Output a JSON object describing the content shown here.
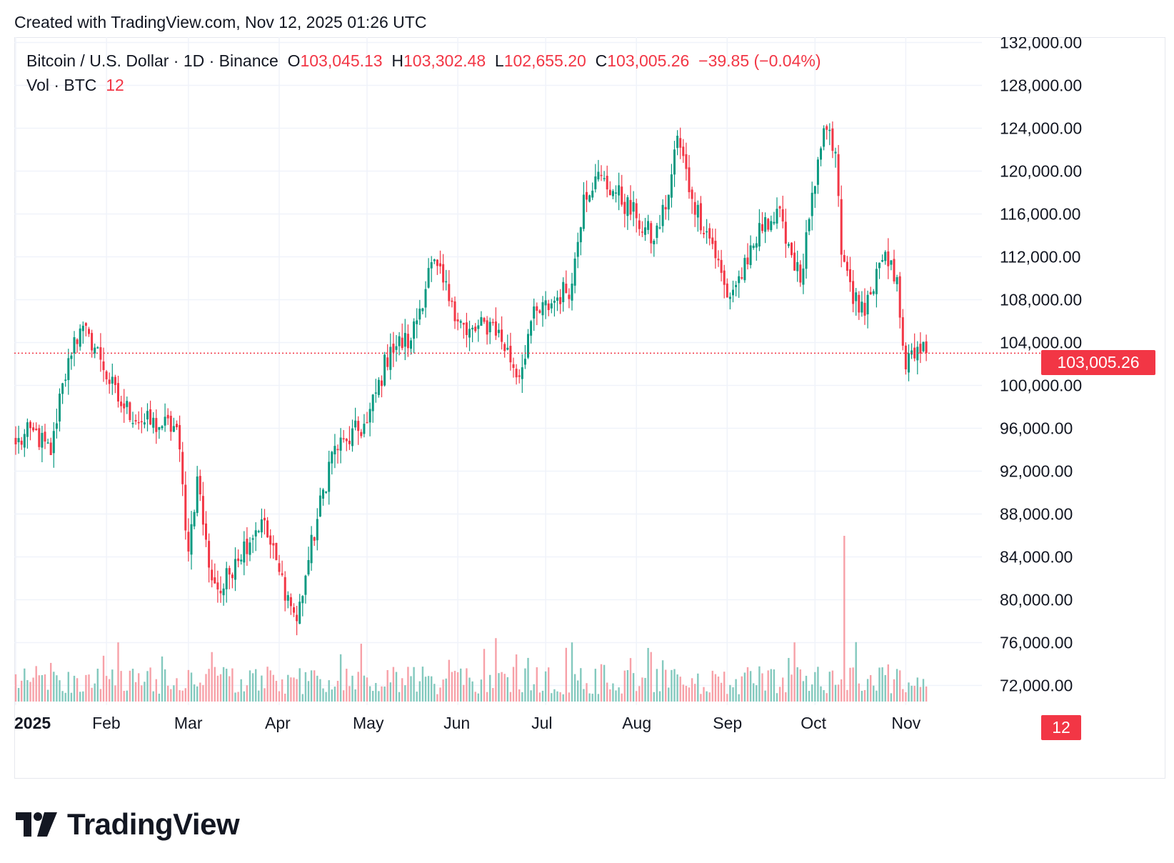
{
  "header": {
    "created_text": "Created with TradingView.com, Nov 12, 2025 01:26 UTC"
  },
  "legend": {
    "symbol": "Bitcoin / U.S. Dollar · 1D · Binance",
    "open_label": "O",
    "open_value": "103,045.13",
    "high_label": "H",
    "high_value": "103,302.48",
    "low_label": "L",
    "low_value": "102,655.20",
    "close_label": "C",
    "close_value": "103,005.26",
    "change": "−39.85 (−0.04%)",
    "volume_label": "Vol · BTC",
    "volume_value": "12"
  },
  "price_tag": "103,005.26",
  "volume_tag": "12",
  "brand": {
    "name": "TradingView",
    "icon": "tradingview-logo-icon"
  },
  "colors": {
    "up": "#089981",
    "down": "#f23645",
    "up_vol": "#83c9be",
    "down_vol": "#f7a1a8",
    "grid": "#f0f3fa"
  },
  "chart_data": {
    "type": "candlestick",
    "y_ticks": [
      "72,000.00",
      "76,000.00",
      "80,000.00",
      "84,000.00",
      "88,000.00",
      "92,000.00",
      "96,000.00",
      "100,000.00",
      "104,000.00",
      "108,000.00",
      "112,000.00",
      "116,000.00",
      "120,000.00",
      "124,000.00",
      "128,000.00",
      "132,000.00"
    ],
    "y_tick_values": [
      72000,
      76000,
      80000,
      84000,
      88000,
      92000,
      96000,
      100000,
      104000,
      108000,
      112000,
      116000,
      120000,
      124000,
      128000,
      132000
    ],
    "ylim": [
      70500,
      132500
    ],
    "x_tick_labels": [
      "2025",
      "Feb",
      "Mar",
      "Apr",
      "May",
      "Jun",
      "Jul",
      "Aug",
      "Sep",
      "Oct",
      "Nov"
    ],
    "x_tick_days": [
      0,
      31,
      59,
      90,
      120,
      151,
      181,
      212,
      243,
      273,
      304
    ],
    "last_price": 103005.26,
    "daily_close_anchors": [
      {
        "day": 0,
        "close": 94500
      },
      {
        "day": 6,
        "close": 95800
      },
      {
        "day": 12,
        "close": 93500
      },
      {
        "day": 16,
        "close": 100200
      },
      {
        "day": 20,
        "close": 104500
      },
      {
        "day": 25,
        "close": 104800
      },
      {
        "day": 29,
        "close": 102400
      },
      {
        "day": 35,
        "close": 98500
      },
      {
        "day": 43,
        "close": 96600
      },
      {
        "day": 50,
        "close": 96200
      },
      {
        "day": 55,
        "close": 96100
      },
      {
        "day": 59,
        "close": 84500
      },
      {
        "day": 62,
        "close": 91500
      },
      {
        "day": 66,
        "close": 83000
      },
      {
        "day": 70,
        "close": 80600
      },
      {
        "day": 75,
        "close": 83800
      },
      {
        "day": 84,
        "close": 87500
      },
      {
        "day": 90,
        "close": 82600
      },
      {
        "day": 96,
        "close": 78000
      },
      {
        "day": 100,
        "close": 83700
      },
      {
        "day": 108,
        "close": 93800
      },
      {
        "day": 113,
        "close": 94800
      },
      {
        "day": 120,
        "close": 96500
      },
      {
        "day": 128,
        "close": 103600
      },
      {
        "day": 135,
        "close": 104200
      },
      {
        "day": 142,
        "close": 111500
      },
      {
        "day": 149,
        "close": 107800
      },
      {
        "day": 154,
        "close": 104700
      },
      {
        "day": 163,
        "close": 105900
      },
      {
        "day": 172,
        "close": 100800
      },
      {
        "day": 176,
        "close": 106000
      },
      {
        "day": 185,
        "close": 108200
      },
      {
        "day": 190,
        "close": 109500
      },
      {
        "day": 194,
        "close": 117800
      },
      {
        "day": 198,
        "close": 119500
      },
      {
        "day": 205,
        "close": 118000
      },
      {
        "day": 212,
        "close": 115600
      },
      {
        "day": 218,
        "close": 113500
      },
      {
        "day": 223,
        "close": 117800
      },
      {
        "day": 226,
        "close": 123300
      },
      {
        "day": 231,
        "close": 117400
      },
      {
        "day": 238,
        "close": 113200
      },
      {
        "day": 243,
        "close": 108200
      },
      {
        "day": 250,
        "close": 111300
      },
      {
        "day": 256,
        "close": 115700
      },
      {
        "day": 262,
        "close": 115300
      },
      {
        "day": 268,
        "close": 109600
      },
      {
        "day": 273,
        "close": 118600
      },
      {
        "day": 276,
        "close": 124000
      },
      {
        "day": 280,
        "close": 121800
      },
      {
        "day": 282,
        "close": 112200
      },
      {
        "day": 288,
        "close": 106800
      },
      {
        "day": 292,
        "close": 108500
      },
      {
        "day": 296,
        "close": 111700
      },
      {
        "day": 301,
        "close": 110100
      },
      {
        "day": 304,
        "close": 101500
      },
      {
        "day": 308,
        "close": 103600
      },
      {
        "day": 311,
        "close": 103005
      }
    ]
  }
}
